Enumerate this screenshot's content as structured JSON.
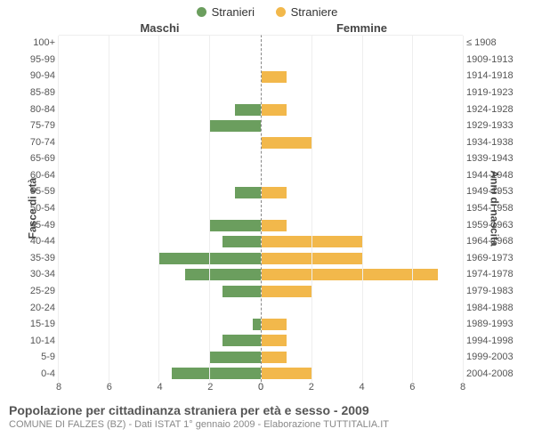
{
  "legend": {
    "male": {
      "label": "Stranieri",
      "color": "#6b9e5e"
    },
    "female": {
      "label": "Straniere",
      "color": "#f2b84b"
    }
  },
  "panel_titles": {
    "left": "Maschi",
    "right": "Femmine"
  },
  "axis_titles": {
    "left": "Fasce di età",
    "right": "Anni di nascita"
  },
  "x_axis": {
    "max": 8,
    "ticks": [
      0,
      2,
      4,
      6,
      8
    ]
  },
  "grid_color": "#eeeeee",
  "center_line_color": "#888888",
  "background_color": "#ffffff",
  "label_fontsize": 11,
  "rows": [
    {
      "age": "100+",
      "year": "≤ 1908",
      "m": 0,
      "f": 0
    },
    {
      "age": "95-99",
      "year": "1909-1913",
      "m": 0,
      "f": 0
    },
    {
      "age": "90-94",
      "year": "1914-1918",
      "m": 0,
      "f": 1
    },
    {
      "age": "85-89",
      "year": "1919-1923",
      "m": 0,
      "f": 0
    },
    {
      "age": "80-84",
      "year": "1924-1928",
      "m": 1,
      "f": 1
    },
    {
      "age": "75-79",
      "year": "1929-1933",
      "m": 2,
      "f": 0
    },
    {
      "age": "70-74",
      "year": "1934-1938",
      "m": 0,
      "f": 2
    },
    {
      "age": "65-69",
      "year": "1939-1943",
      "m": 0,
      "f": 0
    },
    {
      "age": "60-64",
      "year": "1944-1948",
      "m": 0,
      "f": 0
    },
    {
      "age": "55-59",
      "year": "1949-1953",
      "m": 1,
      "f": 1
    },
    {
      "age": "50-54",
      "year": "1954-1958",
      "m": 0,
      "f": 0
    },
    {
      "age": "45-49",
      "year": "1959-1963",
      "m": 2,
      "f": 1
    },
    {
      "age": "40-44",
      "year": "1964-1968",
      "m": 1.5,
      "f": 4
    },
    {
      "age": "35-39",
      "year": "1969-1973",
      "m": 4,
      "f": 4
    },
    {
      "age": "30-34",
      "year": "1974-1978",
      "m": 3,
      "f": 7
    },
    {
      "age": "25-29",
      "year": "1979-1983",
      "m": 1.5,
      "f": 2
    },
    {
      "age": "20-24",
      "year": "1984-1988",
      "m": 0,
      "f": 0
    },
    {
      "age": "15-19",
      "year": "1989-1993",
      "m": 0.3,
      "f": 1
    },
    {
      "age": "10-14",
      "year": "1994-1998",
      "m": 1.5,
      "f": 1
    },
    {
      "age": "5-9",
      "year": "1999-2003",
      "m": 2,
      "f": 1
    },
    {
      "age": "0-4",
      "year": "2004-2008",
      "m": 3.5,
      "f": 2
    }
  ],
  "footer": {
    "title": "Popolazione per cittadinanza straniera per età e sesso - 2009",
    "subtitle": "COMUNE DI FALZES (BZ) - Dati ISTAT 1° gennaio 2009 - Elaborazione TUTTITALIA.IT"
  }
}
